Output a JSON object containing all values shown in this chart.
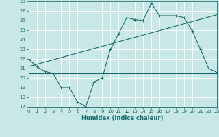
{
  "title": "",
  "xlabel": "Humidex (Indice chaleur)",
  "bg_color": "#c8e8e8",
  "grid_color": "#ffffff",
  "line_color": "#1a6b6b",
  "ylim": [
    17,
    28
  ],
  "xlim": [
    0,
    23
  ],
  "yticks": [
    17,
    18,
    19,
    20,
    21,
    22,
    23,
    24,
    25,
    26,
    27,
    28
  ],
  "xticks": [
    0,
    1,
    2,
    3,
    4,
    5,
    6,
    7,
    8,
    9,
    10,
    11,
    12,
    13,
    14,
    15,
    16,
    17,
    18,
    19,
    20,
    21,
    22,
    23
  ],
  "line1_x": [
    0,
    1,
    2,
    3,
    4,
    5,
    6,
    7,
    8,
    9,
    10,
    11,
    12,
    13,
    14,
    15,
    16,
    17,
    18,
    19,
    20,
    21,
    22,
    23
  ],
  "line1_y": [
    22.0,
    21.2,
    20.7,
    20.5,
    19.0,
    19.0,
    17.5,
    17.0,
    19.6,
    20.0,
    23.0,
    24.6,
    26.3,
    26.1,
    26.0,
    27.8,
    26.5,
    26.5,
    26.5,
    26.3,
    24.9,
    23.0,
    21.0,
    20.6
  ],
  "line2_x": [
    0,
    23
  ],
  "line2_y": [
    21.2,
    26.6
  ],
  "line3_x": [
    0,
    21,
    23
  ],
  "line3_y": [
    20.5,
    20.5,
    20.5
  ]
}
